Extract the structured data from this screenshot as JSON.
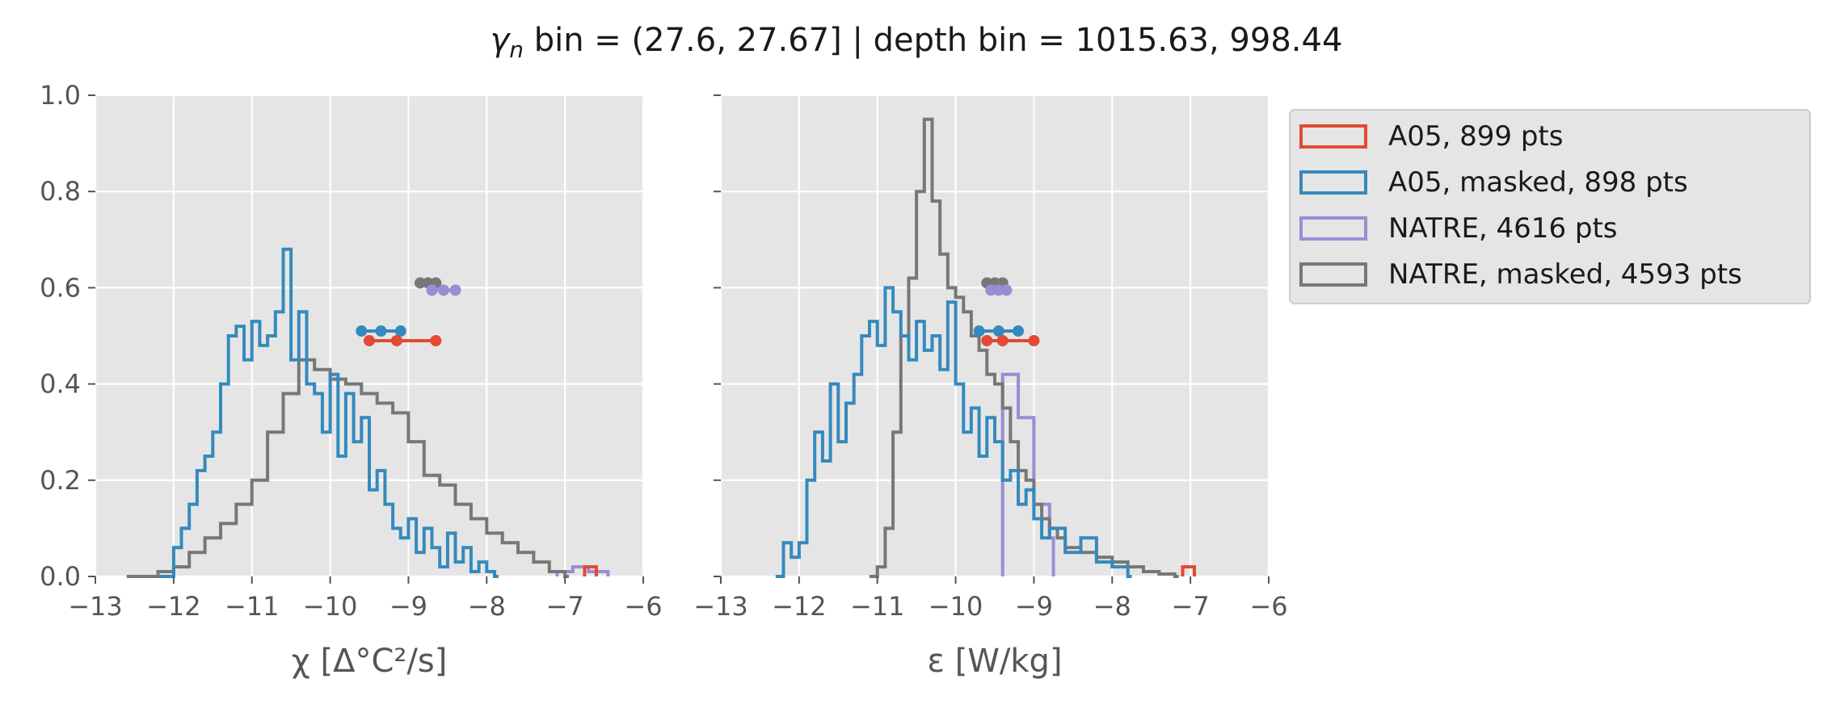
{
  "figure": {
    "title_symbol": "γ",
    "title_sub": "n",
    "title_rest": " bin = (27.6, 27.67] | depth bin = 1015.63, 998.44"
  },
  "chart_data": [
    {
      "type": "histogram",
      "id": "chi",
      "xlabel": "χ [Δ°C²/s]",
      "ylabel": "",
      "xlim": [
        -13,
        -6
      ],
      "ylim": [
        0,
        1.0
      ],
      "xticks": [
        -13,
        -12,
        -11,
        -10,
        -9,
        -8,
        -7,
        -6
      ],
      "xtick_labels": [
        "−13",
        "−12",
        "−11",
        "−10",
        "−9",
        "−8",
        "−7",
        "−6"
      ],
      "yticks": [
        0,
        0.2,
        0.4,
        0.6,
        0.8,
        1.0
      ],
      "ytick_labels": [
        "0.0",
        "0.2",
        "0.4",
        "0.6",
        "0.8",
        "1.0"
      ],
      "grid": true,
      "series": [
        {
          "key": "natre",
          "color": "#988ED5",
          "x": [
            -7.1,
            -6.9,
            -6.7,
            -6.5
          ],
          "y": [
            0.01,
            0.02,
            0.01,
            0.01
          ]
        },
        {
          "key": "a05",
          "color": "#E24A33",
          "x": [
            -6.75,
            -6.65
          ],
          "y": [
            0.02,
            0.02
          ]
        },
        {
          "key": "natre_masked",
          "color": "#777777",
          "x": [
            -12.6,
            -12.2,
            -12.0,
            -11.8,
            -11.6,
            -11.4,
            -11.2,
            -11.0,
            -10.8,
            -10.6,
            -10.4,
            -10.2,
            -10.0,
            -9.8,
            -9.6,
            -9.4,
            -9.2,
            -9.0,
            -8.8,
            -8.6,
            -8.4,
            -8.2,
            -8.0,
            -7.8,
            -7.6,
            -7.4,
            -7.2,
            -7.0
          ],
          "y": [
            0.0,
            0.01,
            0.02,
            0.05,
            0.08,
            0.11,
            0.15,
            0.2,
            0.3,
            0.38,
            0.45,
            0.43,
            0.41,
            0.4,
            0.38,
            0.36,
            0.34,
            0.28,
            0.21,
            0.19,
            0.15,
            0.12,
            0.09,
            0.07,
            0.05,
            0.03,
            0.01,
            0.0
          ]
        },
        {
          "key": "a05_masked",
          "color": "#348ABD",
          "x": [
            -12.2,
            -12.0,
            -11.9,
            -11.8,
            -11.7,
            -11.6,
            -11.5,
            -11.4,
            -11.3,
            -11.2,
            -11.1,
            -11.0,
            -10.9,
            -10.8,
            -10.7,
            -10.6,
            -10.5,
            -10.4,
            -10.3,
            -10.2,
            -10.1,
            -10.0,
            -9.9,
            -9.8,
            -9.7,
            -9.6,
            -9.5,
            -9.4,
            -9.3,
            -9.2,
            -9.1,
            -9.0,
            -8.9,
            -8.8,
            -8.7,
            -8.6,
            -8.5,
            -8.4,
            -8.3,
            -8.2,
            -8.1,
            -8.0,
            -7.9
          ],
          "y": [
            0.0,
            0.06,
            0.1,
            0.15,
            0.22,
            0.25,
            0.3,
            0.4,
            0.5,
            0.52,
            0.45,
            0.53,
            0.48,
            0.5,
            0.55,
            0.68,
            0.45,
            0.55,
            0.4,
            0.38,
            0.3,
            0.42,
            0.25,
            0.38,
            0.28,
            0.33,
            0.18,
            0.22,
            0.15,
            0.1,
            0.08,
            0.12,
            0.05,
            0.1,
            0.06,
            0.02,
            0.09,
            0.03,
            0.06,
            0.01,
            0.03,
            0.01,
            0.0
          ]
        }
      ],
      "markers": [
        {
          "key": "natre_masked",
          "color": "#777777",
          "y": 0.61,
          "x": [
            -8.85,
            -8.75,
            -8.65
          ]
        },
        {
          "key": "natre",
          "color": "#988ED5",
          "y": 0.595,
          "x": [
            -8.7,
            -8.55,
            -8.4
          ]
        },
        {
          "key": "a05_masked",
          "color": "#348ABD",
          "y": 0.51,
          "x": [
            -9.6,
            -9.35,
            -9.1
          ]
        },
        {
          "key": "a05",
          "color": "#E24A33",
          "y": 0.49,
          "x": [
            -9.5,
            -9.15,
            -8.65
          ]
        }
      ]
    },
    {
      "type": "histogram",
      "id": "eps",
      "xlabel": "ε [W/kg]",
      "ylabel": "",
      "xlim": [
        -13,
        -6
      ],
      "ylim": [
        0,
        1.0
      ],
      "xticks": [
        -13,
        -12,
        -11,
        -10,
        -9,
        -8,
        -7,
        -6
      ],
      "xtick_labels": [
        "−13",
        "−12",
        "−11",
        "−10",
        "−9",
        "−8",
        "−7",
        "−6"
      ],
      "yticks": [
        0,
        0.2,
        0.4,
        0.6,
        0.8,
        1.0
      ],
      "grid": true,
      "series": [
        {
          "key": "natre",
          "color": "#988ED5",
          "x": [
            -9.4,
            -9.2,
            -9.0,
            -8.8
          ],
          "y": [
            0.42,
            0.33,
            0.15,
            0.08
          ]
        },
        {
          "key": "a05",
          "color": "#E24A33",
          "x": [
            -7.1,
            -7.0
          ],
          "y": [
            0.02,
            0.02
          ]
        },
        {
          "key": "natre_masked",
          "color": "#777777",
          "x": [
            -11.1,
            -11.0,
            -10.9,
            -10.8,
            -10.7,
            -10.6,
            -10.5,
            -10.4,
            -10.3,
            -10.2,
            -10.1,
            -10.0,
            -9.9,
            -9.8,
            -9.7,
            -9.6,
            -9.5,
            -9.4,
            -9.3,
            -9.2,
            -9.1,
            -9.0,
            -8.9,
            -8.8,
            -8.7,
            -8.6,
            -8.4,
            -8.2,
            -8.0,
            -7.8,
            -7.6,
            -7.4,
            -7.2
          ],
          "y": [
            0.0,
            0.02,
            0.1,
            0.3,
            0.5,
            0.62,
            0.8,
            0.95,
            0.78,
            0.67,
            0.6,
            0.58,
            0.55,
            0.5,
            0.47,
            0.42,
            0.4,
            0.35,
            0.28,
            0.22,
            0.2,
            0.15,
            0.12,
            0.1,
            0.08,
            0.06,
            0.05,
            0.04,
            0.03,
            0.02,
            0.01,
            0.005,
            0.0
          ]
        },
        {
          "key": "a05_masked",
          "color": "#348ABD",
          "x": [
            -12.3,
            -12.2,
            -12.1,
            -12.0,
            -11.9,
            -11.8,
            -11.7,
            -11.6,
            -11.5,
            -11.4,
            -11.3,
            -11.2,
            -11.1,
            -11.0,
            -10.9,
            -10.8,
            -10.7,
            -10.6,
            -10.5,
            -10.4,
            -10.3,
            -10.2,
            -10.1,
            -10.0,
            -9.9,
            -9.8,
            -9.7,
            -9.6,
            -9.5,
            -9.4,
            -9.3,
            -9.2,
            -9.1,
            -9.0,
            -8.9,
            -8.8,
            -8.6,
            -8.4,
            -8.2,
            -8.0,
            -7.8
          ],
          "y": [
            0.0,
            0.07,
            0.04,
            0.07,
            0.2,
            0.3,
            0.24,
            0.4,
            0.28,
            0.36,
            0.42,
            0.5,
            0.53,
            0.48,
            0.6,
            0.55,
            0.5,
            0.45,
            0.53,
            0.47,
            0.5,
            0.43,
            0.57,
            0.4,
            0.3,
            0.35,
            0.25,
            0.33,
            0.28,
            0.2,
            0.22,
            0.15,
            0.18,
            0.12,
            0.08,
            0.1,
            0.05,
            0.08,
            0.03,
            0.02,
            0.0
          ]
        }
      ],
      "markers": [
        {
          "key": "natre_masked",
          "color": "#777777",
          "y": 0.61,
          "x": [
            -9.6,
            -9.5,
            -9.4
          ]
        },
        {
          "key": "natre",
          "color": "#988ED5",
          "y": 0.595,
          "x": [
            -9.55,
            -9.45,
            -9.35
          ]
        },
        {
          "key": "a05_masked",
          "color": "#348ABD",
          "y": 0.51,
          "x": [
            -9.7,
            -9.45,
            -9.2
          ]
        },
        {
          "key": "a05",
          "color": "#E24A33",
          "y": 0.49,
          "x": [
            -9.6,
            -9.4,
            -9.0
          ]
        }
      ]
    }
  ],
  "legend": {
    "placement": "outside-right",
    "items": [
      {
        "key": "a05",
        "label": "A05, 899 pts",
        "color": "#E24A33"
      },
      {
        "key": "a05_masked",
        "label": "A05, masked,  898 pts",
        "color": "#348ABD"
      },
      {
        "key": "natre",
        "label": "NATRE, 4616 pts",
        "color": "#988ED5"
      },
      {
        "key": "natre_masked",
        "label": "NATRE, masked,  4593 pts",
        "color": "#777777"
      }
    ]
  }
}
